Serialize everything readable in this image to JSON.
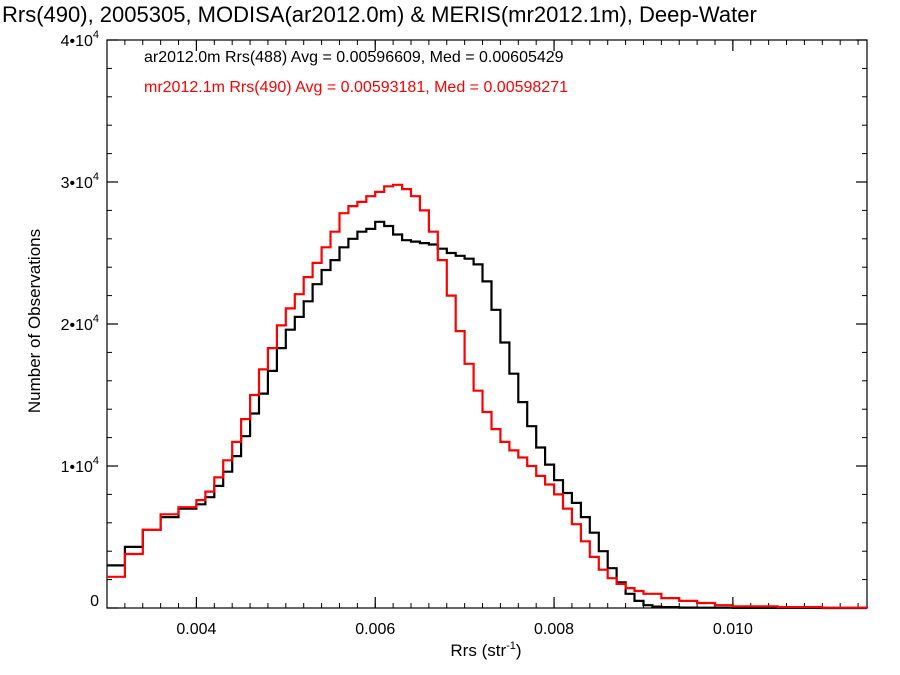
{
  "chart_data": {
    "type": "line",
    "title": "Rrs(490), 2005305, MODISA(ar2012.0m) & MERIS(mr2012.1m), Deep-Water",
    "xlabel_main": "Rrs (str",
    "xlabel_sup": "-1",
    "xlabel_close": ")",
    "ylabel": "Number of Observations",
    "xlim": [
      0.003,
      0.0115
    ],
    "ylim": [
      0,
      40000
    ],
    "x_ticks": [
      {
        "value": 0.004,
        "label": "0.004"
      },
      {
        "value": 0.006,
        "label": "0.006"
      },
      {
        "value": 0.008,
        "label": "0.008"
      },
      {
        "value": 0.01,
        "label": "0.010"
      }
    ],
    "y_ticks": [
      {
        "value": 0,
        "label": "0",
        "sup": ""
      },
      {
        "value": 10000,
        "label": "1•10",
        "sup": "4"
      },
      {
        "value": 20000,
        "label": "2•10",
        "sup": "4"
      },
      {
        "value": 30000,
        "label": "3•10",
        "sup": "4"
      },
      {
        "value": 40000,
        "label": "4•10",
        "sup": "4"
      }
    ],
    "legend_position": "top-left",
    "series": [
      {
        "name": "ar2012.0m Rrs(488) Avg = 0.00596609, Med = 0.00605429",
        "color": "#000000",
        "x": [
          0.003,
          0.0032,
          0.0034,
          0.0036,
          0.0038,
          0.004,
          0.0041,
          0.0042,
          0.0043,
          0.0044,
          0.0045,
          0.0046,
          0.0047,
          0.0048,
          0.0049,
          0.005,
          0.0051,
          0.0052,
          0.0053,
          0.0054,
          0.0055,
          0.0056,
          0.0057,
          0.0058,
          0.0059,
          0.006,
          0.0061,
          0.0062,
          0.0063,
          0.0064,
          0.0065,
          0.0066,
          0.0067,
          0.0068,
          0.0069,
          0.007,
          0.0071,
          0.0072,
          0.0073,
          0.0074,
          0.0075,
          0.0076,
          0.0077,
          0.0078,
          0.0079,
          0.008,
          0.0081,
          0.0082,
          0.0083,
          0.0084,
          0.0085,
          0.0086,
          0.0087,
          0.0088,
          0.0089,
          0.009,
          0.0091,
          0.0092,
          0.0094,
          0.0096,
          0.01,
          0.0105,
          0.011,
          0.0115
        ],
        "y": [
          3000,
          4300,
          5500,
          6400,
          7000,
          7300,
          7800,
          8600,
          9600,
          10700,
          12100,
          13700,
          15100,
          16700,
          18300,
          19600,
          20500,
          21600,
          22800,
          23800,
          24500,
          25400,
          26000,
          26500,
          26700,
          27200,
          26900,
          26300,
          25900,
          25800,
          25700,
          25600,
          25300,
          25000,
          24800,
          24600,
          24200,
          23000,
          21000,
          18700,
          16500,
          14500,
          12800,
          11300,
          10100,
          9000,
          8100,
          7400,
          6400,
          5300,
          4000,
          2800,
          1800,
          1000,
          500,
          200,
          100,
          60,
          30,
          20,
          10,
          5,
          0,
          0
        ]
      },
      {
        "name": "mr2012.1m Rrs(490) Avg = 0.00593181, Med = 0.00598271",
        "color": "#ff0000",
        "x": [
          0.003,
          0.0032,
          0.0034,
          0.0036,
          0.0038,
          0.004,
          0.0041,
          0.0042,
          0.0043,
          0.0044,
          0.0045,
          0.0046,
          0.0047,
          0.0048,
          0.0049,
          0.005,
          0.0051,
          0.0052,
          0.0053,
          0.0054,
          0.0055,
          0.0056,
          0.0057,
          0.0058,
          0.0059,
          0.006,
          0.0061,
          0.0062,
          0.0063,
          0.0064,
          0.0065,
          0.0066,
          0.0067,
          0.0068,
          0.0069,
          0.007,
          0.0071,
          0.0072,
          0.0073,
          0.0074,
          0.0075,
          0.0076,
          0.0077,
          0.0078,
          0.0079,
          0.008,
          0.0081,
          0.0082,
          0.0083,
          0.0084,
          0.0085,
          0.0086,
          0.0087,
          0.0088,
          0.0089,
          0.009,
          0.0092,
          0.0094,
          0.0096,
          0.0098,
          0.01,
          0.0105,
          0.011,
          0.0115
        ],
        "y": [
          2200,
          3800,
          5500,
          6600,
          7100,
          7600,
          8200,
          9200,
          10400,
          11700,
          13300,
          15000,
          16800,
          18300,
          19900,
          21100,
          22100,
          23300,
          24300,
          25400,
          26500,
          27800,
          28300,
          28600,
          29000,
          29300,
          29700,
          29800,
          29500,
          29000,
          28000,
          26500,
          24500,
          22000,
          19500,
          17200,
          15300,
          13800,
          12600,
          11700,
          11100,
          10600,
          10000,
          9300,
          8700,
          8000,
          7000,
          5900,
          4700,
          3600,
          2700,
          2100,
          1700,
          1400,
          1200,
          1000,
          700,
          500,
          350,
          200,
          120,
          60,
          20,
          10
        ]
      }
    ]
  }
}
